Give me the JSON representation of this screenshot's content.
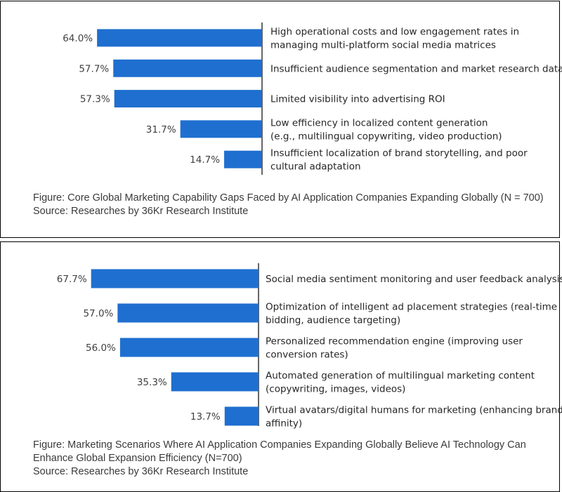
{
  "chart_data": [
    {
      "type": "bar",
      "orientation": "horizontal",
      "direction": "right-to-left",
      "categories": [
        [
          "High operational costs and low engagement rates in",
          "managing multi-platform social media matrices"
        ],
        [
          "Insufficient audience segmentation and market research data"
        ],
        [
          "Limited visibility into advertising ROI"
        ],
        [
          "Low efficiency in localized content generation",
          "(e.g., multilingual copywriting, video production)"
        ],
        [
          "Insufficient localization of brand storytelling, and poor",
          "cultural adaptation"
        ]
      ],
      "values": [
        64.0,
        57.7,
        57.3,
        31.7,
        14.7
      ],
      "labels": [
        "64.0%",
        "57.7%",
        "57.3%",
        "31.7%",
        "14.7%"
      ],
      "unit": "%",
      "color": "#1f6fd0",
      "caption": "Figure: Core Global Marketing Capability Gaps Faced by AI Application Companies Expanding Globally (N = 700)",
      "source": "Source: Researches by 36Kr Research Institute"
    },
    {
      "type": "bar",
      "orientation": "horizontal",
      "direction": "right-to-left",
      "categories": [
        [
          "Social media sentiment monitoring and user feedback analysis"
        ],
        [
          "Optimization of intelligent ad placement strategies (real-time",
          "bidding, audience targeting)"
        ],
        [
          "Personalized recommendation engine (improving user",
          "conversion rates)"
        ],
        [
          "Automated generation of multilingual marketing content",
          "(copywriting, images, videos)"
        ],
        [
          "Virtual avatars/digital humans for marketing (enhancing brand",
          "affinity)"
        ]
      ],
      "values": [
        67.7,
        57.0,
        56.0,
        35.3,
        13.7
      ],
      "labels": [
        "67.7%",
        "57.0%",
        "56.0%",
        "35.3%",
        "13.7%"
      ],
      "unit": "%",
      "color": "#1f6fd0",
      "caption": "Figure: Marketing Scenarios Where AI Application Companies Expanding Globally Believe AI Technology Can Enhance Global Expansion Efficiency (N=700)",
      "source": "Source: Researches by 36Kr Research Institute"
    }
  ]
}
